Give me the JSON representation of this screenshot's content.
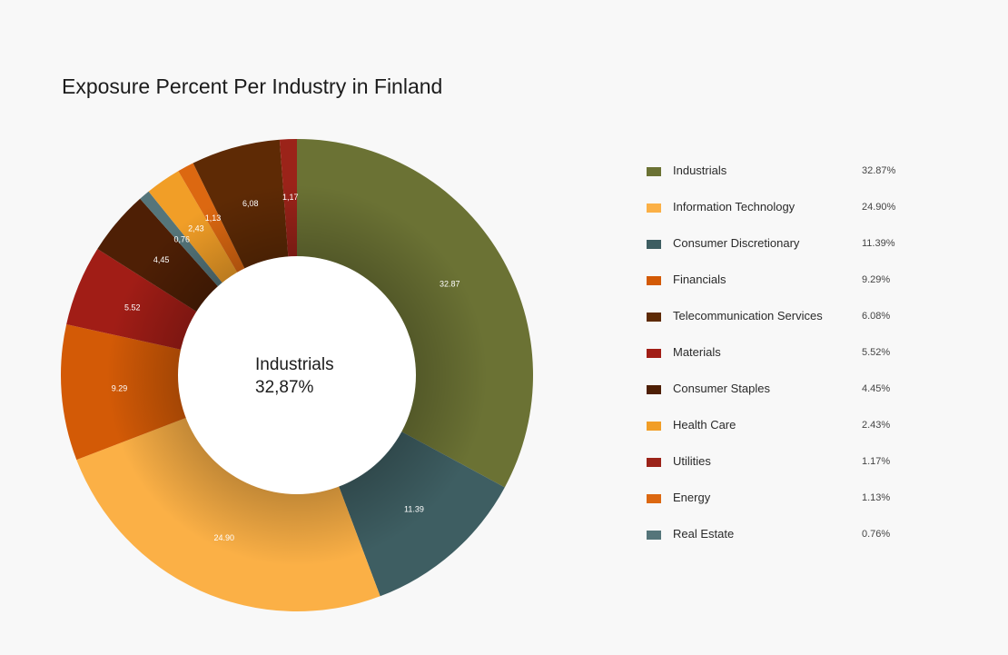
{
  "chart_data": {
    "type": "pie",
    "title": "Exposure Percent Per Industry in Finland",
    "center": {
      "name": "Industrials",
      "value_text": "32,87%"
    },
    "slices": [
      {
        "name": "Industrials",
        "value": 32.87,
        "slice_label": "32.87",
        "legend_value": "32.87%",
        "color": "#6b7234"
      },
      {
        "name": "Consumer Discretionary",
        "value": 11.39,
        "slice_label": "11.39",
        "legend_value": "11.39%",
        "color": "#3e5e62"
      },
      {
        "name": "Information Technology",
        "value": 24.9,
        "slice_label": "24.90",
        "legend_value": "24.90%",
        "color": "#fbb046"
      },
      {
        "name": "Financials",
        "value": 9.29,
        "slice_label": "9.29",
        "legend_value": "9.29%",
        "color": "#d35a06"
      },
      {
        "name": "Materials",
        "value": 5.52,
        "slice_label": "5.52",
        "legend_value": "5.52%",
        "color": "#a11d16"
      },
      {
        "name": "Consumer Staples",
        "value": 4.45,
        "slice_label": "4,45",
        "legend_value": "4.45%",
        "color": "#4e1f05"
      },
      {
        "name": "Real Estate",
        "value": 0.76,
        "slice_label": "0,76",
        "legend_value": "0.76%",
        "color": "#55757a"
      },
      {
        "name": "Health Care",
        "value": 2.43,
        "slice_label": "2,43",
        "legend_value": "2.43%",
        "color": "#f19e27"
      },
      {
        "name": "Energy",
        "value": 1.13,
        "slice_label": "1,13",
        "legend_value": "1.13%",
        "color": "#dc6811"
      },
      {
        "name": "Telecommunication Services",
        "value": 6.08,
        "slice_label": "6,08",
        "legend_value": "6.08%",
        "color": "#5e2a05"
      },
      {
        "name": "Utilities",
        "value": 1.17,
        "slice_label": "1,17",
        "legend_value": "1.17%",
        "color": "#9b2319"
      }
    ],
    "legend": [
      {
        "name": "Industrials",
        "value": "32.87%",
        "color": "#6b7234"
      },
      {
        "name": "Information Technology",
        "value": "24.90%",
        "color": "#fbb046"
      },
      {
        "name": "Consumer Discretionary",
        "value": "11.39%",
        "color": "#3e5e62"
      },
      {
        "name": "Financials",
        "value": "9.29%",
        "color": "#d35a06"
      },
      {
        "name": "Telecommunication Services",
        "value": "6.08%",
        "color": "#5e2a05"
      },
      {
        "name": "Materials",
        "value": "5.52%",
        "color": "#a11d16"
      },
      {
        "name": "Consumer Staples",
        "value": "4.45%",
        "color": "#4e1f05"
      },
      {
        "name": "Health Care",
        "value": "2.43%",
        "color": "#f19e27"
      },
      {
        "name": "Utilities",
        "value": "1.17%",
        "color": "#9b2319"
      },
      {
        "name": "Energy",
        "value": "1.13%",
        "color": "#dc6811"
      },
      {
        "name": "Real Estate",
        "value": "0.76%",
        "color": "#55757a"
      }
    ],
    "legend_placement": "right"
  }
}
